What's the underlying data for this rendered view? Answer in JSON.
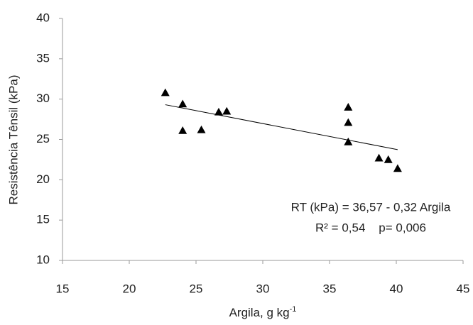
{
  "chart_data": {
    "type": "scatter",
    "x_label": {
      "text": "Argila, g kg",
      "superscript": "-1"
    },
    "y_label": "Resistência Tênsil (kPa)",
    "series": [
      {
        "color": "#000000",
        "x": [
          22.7,
          24.0,
          24.0,
          25.4,
          26.7,
          27.3,
          36.4,
          36.4,
          36.4,
          38.7,
          39.4,
          40.1
        ],
        "values": [
          30.8,
          29.4,
          26.1,
          26.2,
          28.4,
          28.5,
          29.0,
          27.1,
          24.7,
          22.7,
          22.5,
          21.4
        ]
      }
    ],
    "trendline": {
      "intercept": 36.57,
      "slope": -0.32
    },
    "annotations": [
      "RT (kPa) = 36,57 - 0,32 Argila",
      "R² = 0,54    p= 0,006"
    ],
    "xlim": [
      15,
      45
    ],
    "xticks": [
      15,
      20,
      25,
      30,
      35,
      40,
      45
    ],
    "ylim": [
      10,
      40
    ],
    "yticks": [
      10,
      15,
      20,
      25,
      30,
      35,
      40
    ],
    "grid": false
  }
}
